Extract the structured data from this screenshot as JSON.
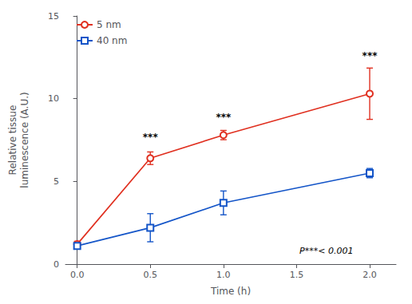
{
  "chart_data": {
    "type": "line",
    "xlabel": "Time (h)",
    "ylabel": "Relative tissue\nluminescence (A.U.)",
    "xlim": [
      -0.08,
      2.18
    ],
    "xticks": [
      {
        "value": 0,
        "label": "0.0"
      },
      0.5,
      {
        "value": 1,
        "label": "1.0"
      },
      1.5,
      {
        "value": 2,
        "label": "2.0"
      }
    ],
    "ylim": [
      0,
      15
    ],
    "yticks": [
      0,
      5,
      10,
      15
    ],
    "grid": false,
    "legend": "upper left",
    "series": [
      {
        "name": "5 nm",
        "color": "#e03020",
        "marker": "circle",
        "x": [
          0.0,
          0.5,
          1.0,
          2.0
        ],
        "values": [
          1.2,
          6.4,
          7.8,
          10.3
        ],
        "yerr": [
          0.18,
          0.38,
          0.28,
          1.55
        ],
        "significance": [
          null,
          "***",
          "***",
          "***"
        ],
        "sig_y": [
          null,
          7.4,
          8.6,
          12.3
        ]
      },
      {
        "name": "40 nm",
        "color": "#1455c8",
        "marker": "square",
        "x": [
          0.0,
          0.5,
          1.0,
          2.0
        ],
        "values": [
          1.1,
          2.2,
          3.7,
          5.5
        ],
        "yerr": [
          0.15,
          0.85,
          0.72,
          0.28
        ],
        "significance": [
          null,
          null,
          null,
          null
        ],
        "sig_y": [
          null,
          null,
          null,
          null
        ]
      }
    ],
    "annotation": {
      "text": "P***< 0.001",
      "x": 1.52,
      "y": 0.55
    }
  }
}
